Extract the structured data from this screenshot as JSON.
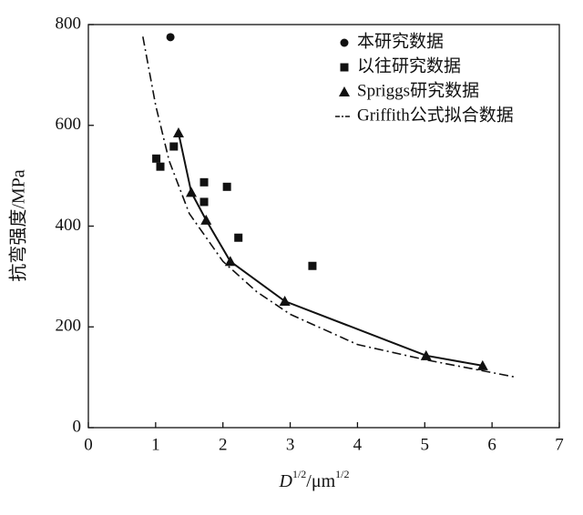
{
  "chart_data": {
    "type": "scatter",
    "x_label": [
      "D",
      "1/2",
      "/μm",
      "1/2"
    ],
    "y_label": "抗弯强度/MPa",
    "xlim": [
      0,
      7
    ],
    "xticks": [
      0,
      1,
      2,
      3,
      4,
      5,
      6,
      7
    ],
    "ylim": [
      0,
      800
    ],
    "yticks": [
      0,
      200,
      400,
      600,
      800
    ],
    "legend": "top-right",
    "series": [
      {
        "name": "本研究数据",
        "color": "#111111",
        "marker": "circle",
        "line": "none",
        "x": [
          1.22
        ],
        "values": [
          775
        ]
      },
      {
        "name": "以往研究数据",
        "color": "#111111",
        "marker": "square",
        "line": "none",
        "x": [
          1.01,
          1.07,
          1.27,
          1.72,
          1.72,
          2.06,
          2.23,
          3.33
        ],
        "values": [
          534,
          518,
          558,
          487,
          448,
          478,
          377,
          321
        ]
      },
      {
        "name": "Spriggs研究数据",
        "color": "#111111",
        "marker": "triangle",
        "line": "solid",
        "x": [
          1.34,
          1.53,
          1.75,
          2.11,
          2.92,
          5.02,
          5.86
        ],
        "values": [
          585,
          467,
          412,
          330,
          251,
          143,
          123
        ]
      },
      {
        "name": "Griffith公式拟合数据",
        "color": "#111111",
        "marker": "none",
        "line": "dash-dot",
        "x": [
          0.81,
          1.0,
          1.2,
          1.5,
          2.0,
          2.5,
          3.0,
          4.0,
          5.0,
          6.36
        ],
        "values": [
          776,
          640,
          530,
          425,
          330,
          270,
          225,
          165,
          135,
          100
        ]
      }
    ]
  }
}
